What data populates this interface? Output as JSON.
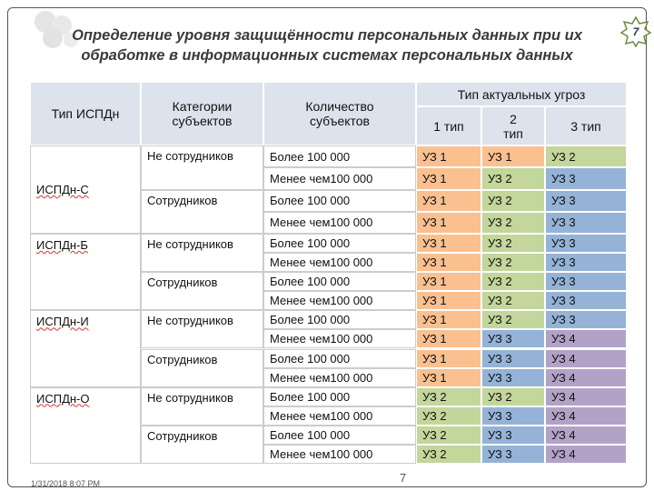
{
  "header": {
    "title_lines": [
      "Определение уровня защищённости персональных данных при их",
      "обработке в информационных системах персональных данных"
    ],
    "page_badge": "7"
  },
  "table": {
    "head": {
      "type": "Тип ИСПДн",
      "category": "Категории субъектов",
      "count": "Количество субъектов",
      "threats": "Тип актуальных угроз",
      "threat_types": [
        "1 тип",
        "2 тип",
        "3 тип"
      ]
    },
    "level_colors": {
      "УЗ 1": "#fac090",
      "УЗ 2": "#c3d69b",
      "УЗ 3": "#95b3d7",
      "УЗ 4": "#b3a2c7"
    },
    "groups": [
      {
        "type": "ИСПДн-С",
        "categories": [
          {
            "name": "Не сотрудников",
            "rows": [
              {
                "count": "Более 100 000",
                "levels": [
                  "УЗ 1",
                  "УЗ 1",
                  "УЗ 2"
                ]
              },
              {
                "count": "Менее чем100 000",
                "levels": [
                  "УЗ 1",
                  "УЗ 2",
                  "УЗ 3"
                ]
              }
            ]
          },
          {
            "name": "Сотрудников",
            "rows": [
              {
                "count": "Более 100 000",
                "levels": [
                  "УЗ 1",
                  "УЗ 2",
                  "УЗ 3"
                ]
              },
              {
                "count": "Менее чем100 000",
                "levels": [
                  "УЗ 1",
                  "УЗ 2",
                  "УЗ 3"
                ]
              }
            ]
          }
        ]
      },
      {
        "type": "ИСПДн-Б",
        "categories": [
          {
            "name": "Не сотрудников",
            "rows": [
              {
                "count": "Более 100 000",
                "levels": [
                  "УЗ 1",
                  "УЗ 2",
                  "УЗ 3"
                ]
              },
              {
                "count": "Менее чем100 000",
                "levels": [
                  "УЗ 1",
                  "УЗ 2",
                  "УЗ 3"
                ]
              }
            ]
          },
          {
            "name": "Сотрудников",
            "rows": [
              {
                "count": "Более 100 000",
                "levels": [
                  "УЗ 1",
                  "УЗ 2",
                  "УЗ 3"
                ]
              },
              {
                "count": "Менее чем100 000",
                "levels": [
                  "УЗ 1",
                  "УЗ 2",
                  "УЗ 3"
                ]
              }
            ]
          }
        ]
      },
      {
        "type": "ИСПДн-И",
        "categories": [
          {
            "name": "Не сотрудников",
            "rows": [
              {
                "count": "Более 100 000",
                "levels": [
                  "УЗ 1",
                  "УЗ 2",
                  "УЗ 3"
                ]
              },
              {
                "count": "Менее чем100 000",
                "levels": [
                  "УЗ 1",
                  "УЗ 3",
                  "УЗ 4"
                ]
              }
            ]
          },
          {
            "name": "Сотрудников",
            "rows": [
              {
                "count": "Более 100 000",
                "levels": [
                  "УЗ 1",
                  "УЗ 3",
                  "УЗ 4"
                ]
              },
              {
                "count": "Менее чем100 000",
                "levels": [
                  "УЗ 1",
                  "УЗ 3",
                  "УЗ 4"
                ]
              }
            ]
          }
        ]
      },
      {
        "type": "ИСПДн-О",
        "categories": [
          {
            "name": "Не сотрудников",
            "rows": [
              {
                "count": "Более 100 000",
                "levels": [
                  "УЗ 2",
                  "УЗ 2",
                  "УЗ 4"
                ]
              },
              {
                "count": "Менее чем100 000",
                "levels": [
                  "УЗ 2",
                  "УЗ 3",
                  "УЗ 4"
                ]
              }
            ]
          },
          {
            "name": "Сотрудников",
            "rows": [
              {
                "count": "Более 100 000",
                "levels": [
                  "УЗ 2",
                  "УЗ 3",
                  "УЗ 4"
                ]
              },
              {
                "count": "Менее чем100 000",
                "levels": [
                  "УЗ 2",
                  "УЗ 3",
                  "УЗ 4"
                ]
              }
            ]
          }
        ]
      }
    ]
  },
  "footer": {
    "date": "1/31/2018 8:07 PM",
    "page": "7"
  }
}
